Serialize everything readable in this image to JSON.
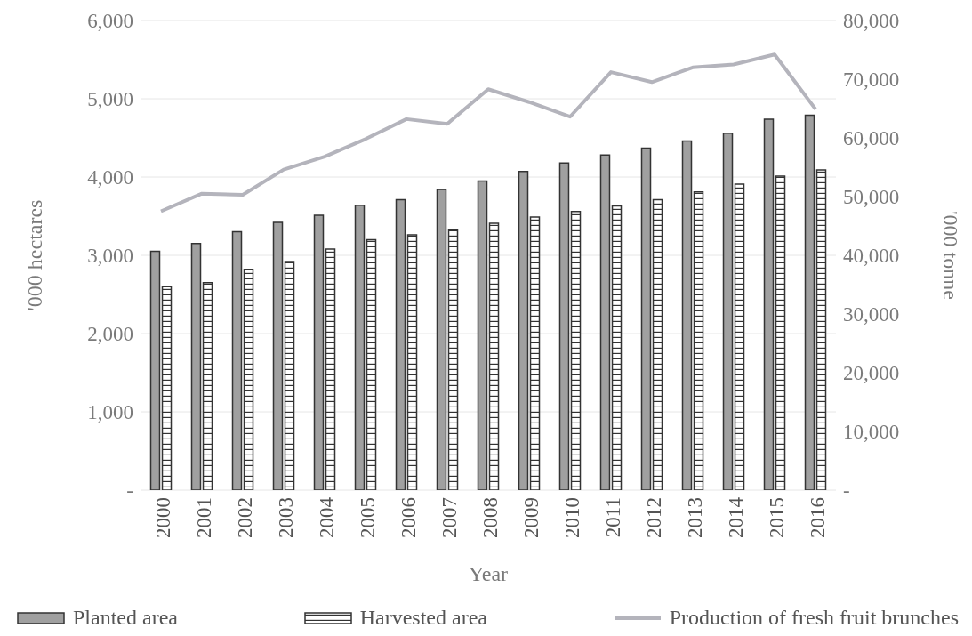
{
  "chart_data": {
    "type": "bar",
    "xlabel": "Year",
    "ylabel": "'000 hectares",
    "y2label": "'000 tonne",
    "categories": [
      "2000",
      "2001",
      "2002",
      "2003",
      "2004",
      "2005",
      "2006",
      "2007",
      "2008",
      "2009",
      "2010",
      "2011",
      "2012",
      "2013",
      "2014",
      "2015",
      "2016"
    ],
    "series": [
      {
        "name": "Planted area",
        "color": "#a0a0a0",
        "values": [
          3050,
          3150,
          3300,
          3420,
          3510,
          3640,
          3710,
          3840,
          3950,
          4070,
          4180,
          4280,
          4370,
          4460,
          4560,
          4740,
          4790
        ]
      },
      {
        "name": "Harvested area",
        "color": "#333333",
        "values": [
          2600,
          2650,
          2820,
          2920,
          3080,
          3200,
          3260,
          3320,
          3410,
          3490,
          3560,
          3630,
          3710,
          3810,
          3910,
          4010,
          4090
        ]
      },
      {
        "name": "Production of fresh fruit brunches",
        "type": "line",
        "axis": "y2",
        "color": "#b4b4bc",
        "values": [
          47500,
          50500,
          50300,
          54600,
          56800,
          59800,
          63200,
          62400,
          68300,
          66100,
          63600,
          71200,
          69500,
          72000,
          72500,
          74200,
          64900
        ]
      }
    ],
    "ylim": [
      0,
      6000
    ],
    "yticks": [
      {
        "value": 0,
        "label": "-"
      },
      {
        "value": 1000,
        "label": "1,000"
      },
      {
        "value": 2000,
        "label": "2,000"
      },
      {
        "value": 3000,
        "label": "3,000"
      },
      {
        "value": 4000,
        "label": "4,000"
      },
      {
        "value": 5000,
        "label": "5,000"
      },
      {
        "value": 6000,
        "label": "6,000"
      }
    ],
    "y2lim": [
      0,
      80000
    ],
    "y2ticks": [
      {
        "value": 0,
        "label": "-"
      },
      {
        "value": 10000,
        "label": "10,000"
      },
      {
        "value": 20000,
        "label": "20,000"
      },
      {
        "value": 30000,
        "label": "30,000"
      },
      {
        "value": 40000,
        "label": "40,000"
      },
      {
        "value": 50000,
        "label": "50,000"
      },
      {
        "value": 60000,
        "label": "60,000"
      },
      {
        "value": 70000,
        "label": "70,000"
      },
      {
        "value": 80000,
        "label": "80,000"
      }
    ],
    "grid": "y",
    "legend": "bottom",
    "marker": "none",
    "line_style": "solid"
  }
}
